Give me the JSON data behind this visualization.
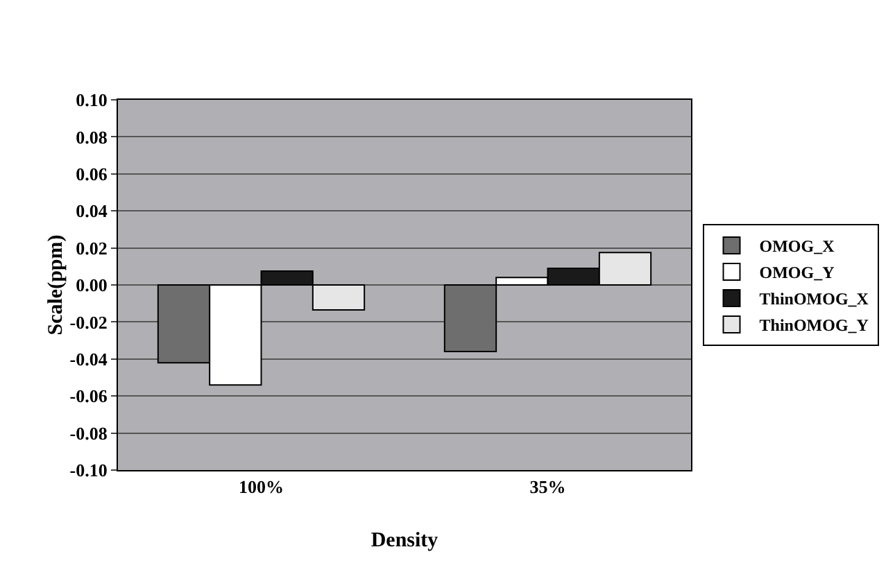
{
  "chart_data": {
    "type": "bar",
    "xlabel": "Density",
    "ylabel": "Scale(ppm)",
    "categories": [
      "100%",
      "35%"
    ],
    "series": [
      {
        "name": "OMOG_X",
        "color": "#6e6e6e",
        "values": [
          -0.042,
          -0.036
        ]
      },
      {
        "name": "OMOG_Y",
        "color": "#ffffff",
        "values": [
          -0.054,
          0.004
        ]
      },
      {
        "name": "ThinOMOG_X",
        "color": "#1a1a1a",
        "values": [
          0.0075,
          0.009
        ]
      },
      {
        "name": "ThinOMOG_Y",
        "color": "#e6e6e6",
        "values": [
          -0.0135,
          0.0175
        ]
      }
    ],
    "ylim": [
      -0.1,
      0.1
    ],
    "yticks": [
      {
        "value": -0.1,
        "label": "-0.10"
      },
      {
        "value": -0.08,
        "label": "-0.08"
      },
      {
        "value": -0.06,
        "label": "-0.06"
      },
      {
        "value": -0.04,
        "label": "-0.04"
      },
      {
        "value": -0.02,
        "label": "-0.02"
      },
      {
        "value": 0,
        "label": "0.00"
      },
      {
        "value": 0.02,
        "label": "0.02"
      },
      {
        "value": 0.04,
        "label": "0.04"
      },
      {
        "value": 0.06,
        "label": "0.06"
      },
      {
        "value": 0.08,
        "label": "0.08"
      },
      {
        "value": 0.1,
        "label": "0.10"
      }
    ],
    "grid": "y",
    "legend": "right"
  }
}
